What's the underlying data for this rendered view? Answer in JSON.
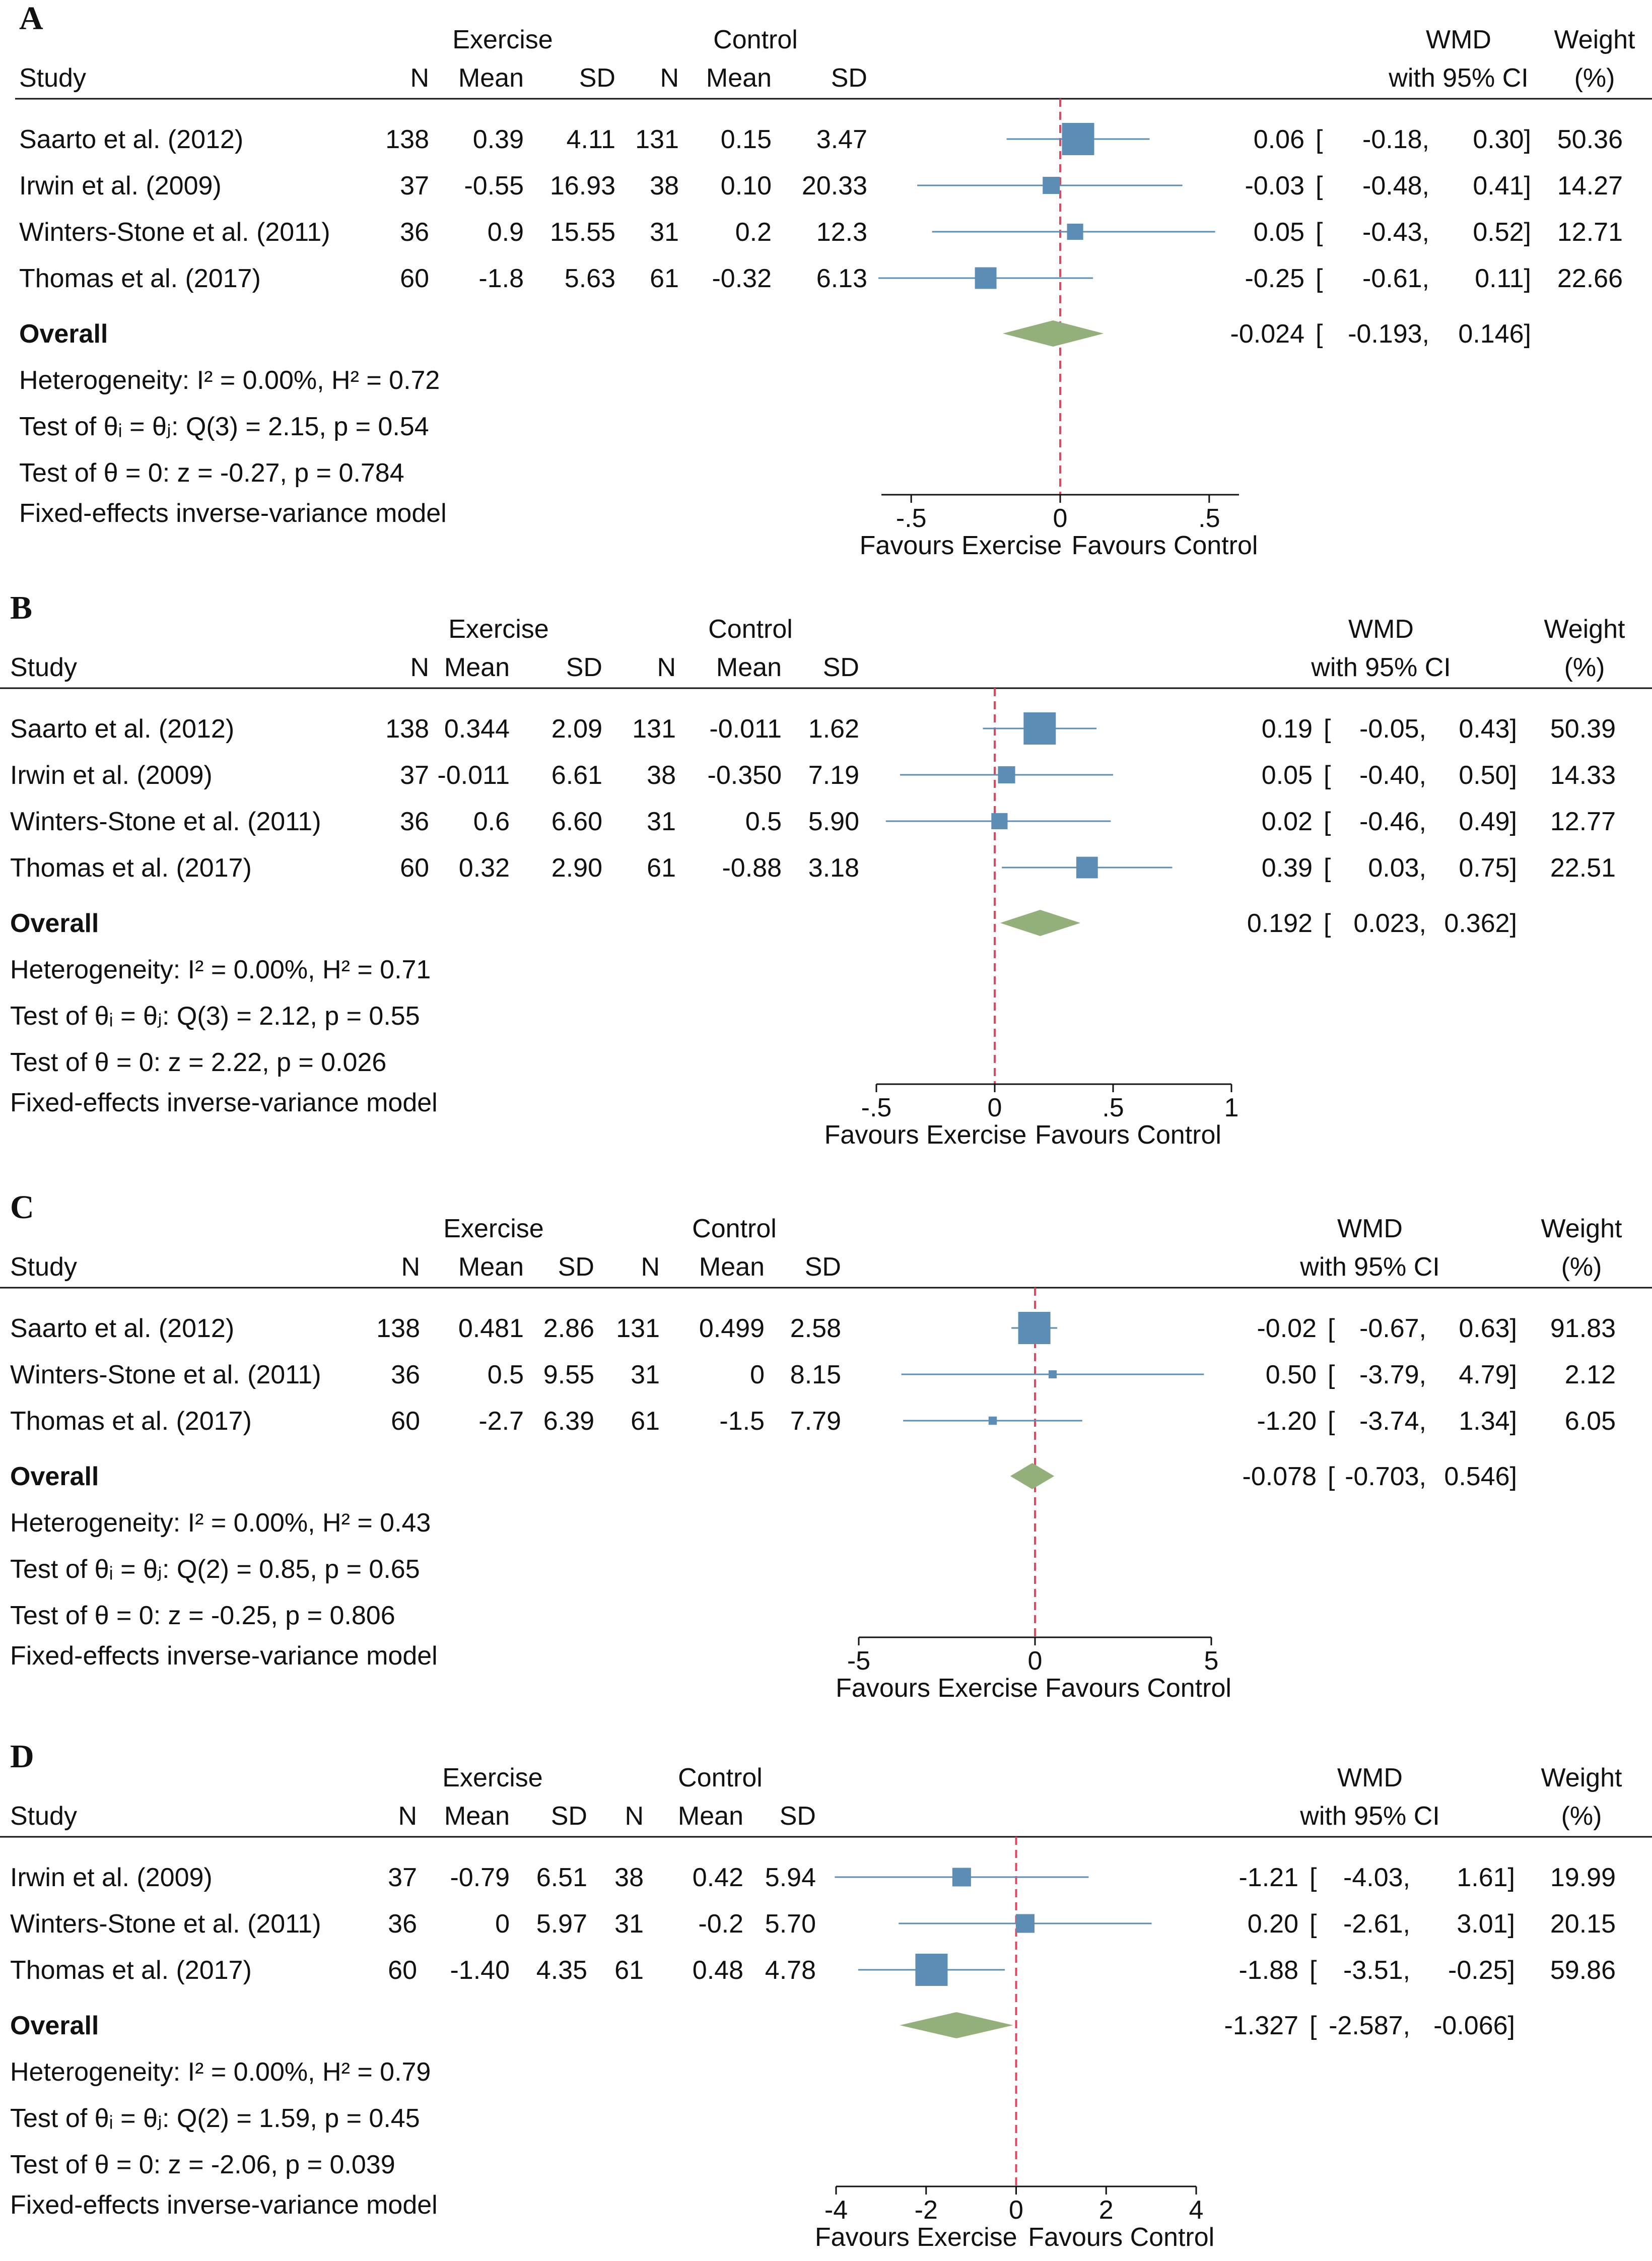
{
  "colors": {
    "square": "#5b8db5",
    "ci_line": "#5b8db5",
    "diamond": "#94b07a",
    "null_line": "#e0485f",
    "text": "#111111",
    "rule": "#111111"
  },
  "chart_data": [
    {
      "type": "forest",
      "panel": "A",
      "group_headers": {
        "exercise": "Exercise",
        "control": "Control"
      },
      "columns": {
        "study": "Study",
        "n": "N",
        "mean": "Mean",
        "sd": "SD",
        "wmd_line1": "WMD",
        "wmd_line2": "with 95% CI",
        "weight_line1": "Weight",
        "weight_line2": "(%)"
      },
      "studies": [
        {
          "name": "Saarto et al. (2012)",
          "ex_n": "138",
          "ex_mean": "0.39",
          "ex_sd": "4.11",
          "ct_n": "131",
          "ct_mean": "0.15",
          "ct_sd": "3.47",
          "est_text": "0.06",
          "lo_text": "-0.18,",
          "hi_text": "0.30]",
          "weight_text": "50.36",
          "est": 0.06,
          "lo": -0.18,
          "hi": 0.3,
          "weight": 50.36
        },
        {
          "name": "Irwin et al. (2009)",
          "ex_n": "37",
          "ex_mean": "-0.55",
          "ex_sd": "16.93",
          "ct_n": "38",
          "ct_mean": "0.10",
          "ct_sd": "20.33",
          "est_text": "-0.03",
          "lo_text": "-0.48,",
          "hi_text": "0.41]",
          "weight_text": "14.27",
          "est": -0.03,
          "lo": -0.48,
          "hi": 0.41,
          "weight": 14.27
        },
        {
          "name": "Winters-Stone et al. (2011)",
          "ex_n": "36",
          "ex_mean": "0.9",
          "ex_sd": "15.55",
          "ct_n": "31",
          "ct_mean": "0.2",
          "ct_sd": "12.3",
          "est_text": "0.05",
          "lo_text": "-0.43,",
          "hi_text": "0.52]",
          "weight_text": "12.71",
          "est": 0.05,
          "lo": -0.43,
          "hi": 0.52,
          "weight": 12.71
        },
        {
          "name": "Thomas et al. (2017)",
          "ex_n": "60",
          "ex_mean": "-1.8",
          "ex_sd": "5.63",
          "ct_n": "61",
          "ct_mean": "-0.32",
          "ct_sd": "6.13",
          "est_text": "-0.25",
          "lo_text": "-0.61,",
          "hi_text": "0.11]",
          "weight_text": "22.66",
          "est": -0.25,
          "lo": -0.61,
          "hi": 0.11,
          "weight": 22.66
        }
      ],
      "overall": {
        "label": "Overall",
        "est_text": "-0.024",
        "lo_text": "-0.193,",
        "hi_text": "0.146]",
        "est": -0.024,
        "lo": -0.193,
        "hi": 0.146
      },
      "stats": [
        "Heterogeneity: I² = 0.00%, H² = 0.72",
        "Test of θᵢ = θⱼ: Q(3) = 2.15, p = 0.54",
        "Test of θ = 0: z = -0.27, p = 0.784",
        "Fixed-effects inverse-variance model"
      ],
      "axis": {
        "ticks": [
          -0.5,
          0,
          0.5
        ],
        "tick_labels": [
          "-.5",
          "0",
          ".5"
        ],
        "xlim": [
          -0.6,
          0.6
        ]
      },
      "favours": {
        "left": "Favours Exercise",
        "right": "Favours Control"
      }
    },
    {
      "type": "forest",
      "panel": "B",
      "group_headers": {
        "exercise": "Exercise",
        "control": "Control"
      },
      "columns": {
        "study": "Study",
        "n": "N",
        "mean": "Mean",
        "sd": "SD",
        "wmd_line1": "WMD",
        "wmd_line2": "with 95% CI",
        "weight_line1": "Weight",
        "weight_line2": "(%)"
      },
      "studies": [
        {
          "name": "Saarto et al. (2012)",
          "ex_n": "138",
          "ex_mean": "0.344",
          "ex_sd": "2.09",
          "ct_n": "131",
          "ct_mean": "-0.011",
          "ct_sd": "1.62",
          "est_text": "0.19",
          "lo_text": "-0.05,",
          "hi_text": "0.43]",
          "weight_text": "50.39",
          "est": 0.19,
          "lo": -0.05,
          "hi": 0.43,
          "weight": 50.39
        },
        {
          "name": "Irwin et al. (2009)",
          "ex_n": "37",
          "ex_mean": "-0.011",
          "ex_sd": "6.61",
          "ct_n": "38",
          "ct_mean": "-0.350",
          "ct_sd": "7.19",
          "est_text": "0.05",
          "lo_text": "-0.40,",
          "hi_text": "0.50]",
          "weight_text": "14.33",
          "est": 0.05,
          "lo": -0.4,
          "hi": 0.5,
          "weight": 14.33
        },
        {
          "name": "Winters-Stone et al. (2011)",
          "ex_n": "36",
          "ex_mean": "0.6",
          "ex_sd": "6.60",
          "ct_n": "31",
          "ct_mean": "0.5",
          "ct_sd": "5.90",
          "est_text": "0.02",
          "lo_text": "-0.46,",
          "hi_text": "0.49]",
          "weight_text": "12.77",
          "est": 0.02,
          "lo": -0.46,
          "hi": 0.49,
          "weight": 12.77
        },
        {
          "name": "Thomas et al. (2017)",
          "ex_n": "60",
          "ex_mean": "0.32",
          "ex_sd": "2.90",
          "ct_n": "61",
          "ct_mean": "-0.88",
          "ct_sd": "3.18",
          "est_text": "0.39",
          "lo_text": "0.03,",
          "hi_text": "0.75]",
          "weight_text": "22.51",
          "est": 0.39,
          "lo": 0.03,
          "hi": 0.75,
          "weight": 22.51
        }
      ],
      "overall": {
        "label": "Overall",
        "est_text": "0.192",
        "lo_text": "0.023,",
        "hi_text": "0.362]",
        "est": 0.192,
        "lo": 0.023,
        "hi": 0.362
      },
      "stats": [
        "Heterogeneity: I² = 0.00%, H² = 0.71",
        "Test of θᵢ = θⱼ: Q(3) = 2.12, p = 0.55",
        "Test of θ = 0: z = 2.22, p = 0.026",
        "Fixed-effects inverse-variance model"
      ],
      "axis": {
        "ticks": [
          -0.5,
          0,
          0.5,
          1
        ],
        "tick_labels": [
          "-.5",
          "0",
          ".5",
          "1"
        ],
        "xlim": [
          -0.5,
          1
        ]
      },
      "favours": {
        "left": "Favours Exercise",
        "right": "Favours Control"
      }
    },
    {
      "type": "forest",
      "panel": "C",
      "group_headers": {
        "exercise": "Exercise",
        "control": "Control"
      },
      "columns": {
        "study": "Study",
        "n": "N",
        "mean": "Mean",
        "sd": "SD",
        "wmd_line1": "WMD",
        "wmd_line2": "with 95% CI",
        "weight_line1": "Weight",
        "weight_line2": "(%)"
      },
      "studies": [
        {
          "name": "Saarto et al. (2012)",
          "ex_n": "138",
          "ex_mean": "0.481",
          "ex_sd": "2.86",
          "ct_n": "131",
          "ct_mean": "0.499",
          "ct_sd": "2.58",
          "est_text": "-0.02",
          "lo_text": "-0.67,",
          "hi_text": "0.63]",
          "weight_text": "91.83",
          "est": -0.02,
          "lo": -0.67,
          "hi": 0.63,
          "weight": 91.83
        },
        {
          "name": "Winters-Stone et al. (2011)",
          "ex_n": "36",
          "ex_mean": "0.5",
          "ex_sd": "9.55",
          "ct_n": "31",
          "ct_mean": "0",
          "ct_sd": "8.15",
          "est_text": "0.50",
          "lo_text": "-3.79,",
          "hi_text": "4.79]",
          "weight_text": "2.12",
          "est": 0.5,
          "lo": -3.79,
          "hi": 4.79,
          "weight": 2.12
        },
        {
          "name": "Thomas et al. (2017)",
          "ex_n": "60",
          "ex_mean": "-2.7",
          "ex_sd": "6.39",
          "ct_n": "61",
          "ct_mean": "-1.5",
          "ct_sd": "7.79",
          "est_text": "-1.20",
          "lo_text": "-3.74,",
          "hi_text": "1.34]",
          "weight_text": "6.05",
          "est": -1.2,
          "lo": -3.74,
          "hi": 1.34,
          "weight": 6.05
        }
      ],
      "overall": {
        "label": "Overall",
        "est_text": "-0.078",
        "lo_text": "-0.703,",
        "hi_text": "0.546]",
        "est": -0.078,
        "lo": -0.703,
        "hi": 0.546
      },
      "stats": [
        "Heterogeneity: I² = 0.00%, H² = 0.43",
        "Test of θᵢ = θⱼ: Q(2) = 0.85, p = 0.65",
        "Test of θ = 0: z = -0.25, p = 0.806",
        "Fixed-effects inverse-variance model"
      ],
      "axis": {
        "ticks": [
          -5,
          0,
          5
        ],
        "tick_labels": [
          "-5",
          "0",
          "5"
        ],
        "xlim": [
          -5,
          5
        ]
      },
      "favours": {
        "left": "Favours Exercise",
        "right": "Favours Control"
      }
    },
    {
      "type": "forest",
      "panel": "D",
      "group_headers": {
        "exercise": "Exercise",
        "control": "Control"
      },
      "columns": {
        "study": "Study",
        "n": "N",
        "mean": "Mean",
        "sd": "SD",
        "wmd_line1": "WMD",
        "wmd_line2": "with 95% CI",
        "weight_line1": "Weight",
        "weight_line2": "(%)"
      },
      "studies": [
        {
          "name": "Irwin et al. (2009)",
          "ex_n": "37",
          "ex_mean": "-0.79",
          "ex_sd": "6.51",
          "ct_n": "38",
          "ct_mean": "0.42",
          "ct_sd": "5.94",
          "est_text": "-1.21",
          "lo_text": "-4.03,",
          "hi_text": "1.61]",
          "weight_text": "19.99",
          "est": -1.21,
          "lo": -4.03,
          "hi": 1.61,
          "weight": 19.99
        },
        {
          "name": "Winters-Stone et al. (2011)",
          "ex_n": "36",
          "ex_mean": "0",
          "ex_sd": "5.97",
          "ct_n": "31",
          "ct_mean": "-0.2",
          "ct_sd": "5.70",
          "est_text": "0.20",
          "lo_text": "-2.61,",
          "hi_text": "3.01]",
          "weight_text": "20.15",
          "est": 0.2,
          "lo": -2.61,
          "hi": 3.01,
          "weight": 20.15
        },
        {
          "name": "Thomas et al. (2017)",
          "ex_n": "60",
          "ex_mean": "-1.40",
          "ex_sd": "4.35",
          "ct_n": "61",
          "ct_mean": "0.48",
          "ct_sd": "4.78",
          "est_text": "-1.88",
          "lo_text": "-3.51,",
          "hi_text": "-0.25]",
          "weight_text": "59.86",
          "est": -1.88,
          "lo": -3.51,
          "hi": -0.25,
          "weight": 59.86
        }
      ],
      "overall": {
        "label": "Overall",
        "est_text": "-1.327",
        "lo_text": "-2.587,",
        "hi_text": "-0.066]",
        "est": -1.327,
        "lo": -2.587,
        "hi": -0.066
      },
      "stats": [
        "Heterogeneity: I² = 0.00%, H² = 0.79",
        "Test of θᵢ = θⱼ: Q(2) = 1.59, p = 0.45",
        "Test of θ = 0: z = -2.06, p = 0.039",
        "Fixed-effects inverse-variance model"
      ],
      "axis": {
        "ticks": [
          -4,
          -2,
          0,
          2,
          4
        ],
        "tick_labels": [
          "-4",
          "-2",
          "0",
          "2",
          "4"
        ],
        "xlim": [
          -4,
          4
        ]
      },
      "favours": {
        "left": "Favours Exercise",
        "right": "Favours Control"
      }
    }
  ]
}
